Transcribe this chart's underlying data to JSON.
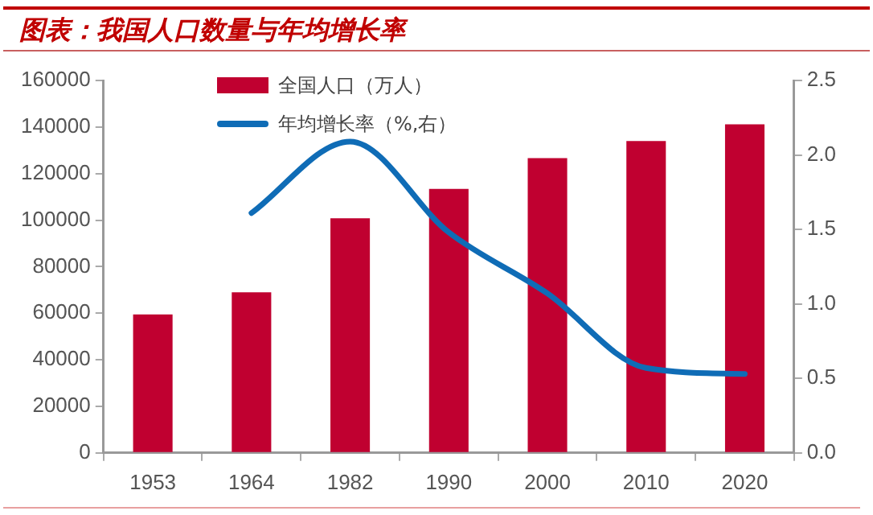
{
  "chart_data": {
    "type": "bar",
    "title": "图表：我国人口数量与年均增长率",
    "categories": [
      "1953",
      "1964",
      "1982",
      "1990",
      "2000",
      "2010",
      "2020"
    ],
    "series": [
      {
        "name": "全国人口（万人）",
        "color": "#c00030",
        "values": [
          59500,
          69000,
          100800,
          113400,
          126600,
          134000,
          141200
        ]
      },
      {
        "name": "年均增长率（%,右）",
        "type": "line",
        "axis": "y2",
        "color": "#0f6cb6",
        "values": [
          null,
          1.61,
          2.09,
          1.48,
          1.07,
          0.57,
          0.53
        ]
      }
    ],
    "ylim": [
      0,
      160000
    ],
    "yticks": [
      0,
      20000,
      40000,
      60000,
      80000,
      100000,
      120000,
      140000,
      160000
    ],
    "y2lim": [
      0,
      2.5
    ],
    "y2ticks": [
      {
        "value": 0,
        "label": "0.0"
      },
      {
        "value": 0.5,
        "label": "0.5"
      },
      {
        "value": 1,
        "label": "1.0"
      },
      {
        "value": 1.5,
        "label": "1.5"
      },
      {
        "value": 2,
        "label": "2.0"
      },
      {
        "value": 2.5,
        "label": "2.5"
      }
    ],
    "grid": false,
    "legend": "top left",
    "marker": "none"
  }
}
